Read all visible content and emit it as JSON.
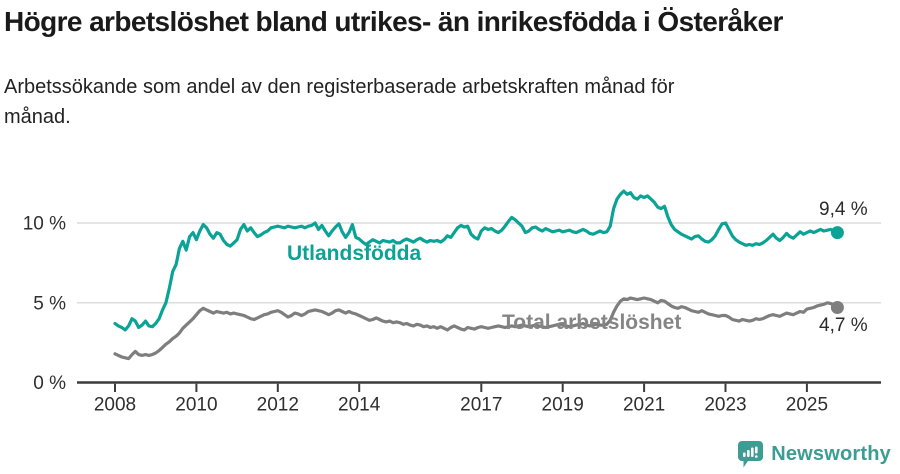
{
  "header": {
    "title": "Högre arbetslöshet bland utrikes- än inrikesfödda i Österåker",
    "subtitle": "Arbetssökande som andel av den registerbaserade arbetskraften månad för månad."
  },
  "chart_data": {
    "type": "line",
    "unit": "%",
    "frequency": "monthly",
    "x_start": {
      "year": 2008,
      "month": 1
    },
    "x_end": {
      "year": 2025,
      "month": 10
    },
    "ylim": [
      0,
      12.5
    ],
    "grid": "horizontal-only",
    "x_ticks": [
      2008,
      2010,
      2012,
      2014,
      2017,
      2019,
      2021,
      2023,
      2025
    ],
    "y_ticks": [
      {
        "value": 0,
        "label": "0 %"
      },
      {
        "value": 5,
        "label": "5 %"
      },
      {
        "value": 10,
        "label": "10 %"
      }
    ],
    "series": [
      {
        "id": "utlandsfodda",
        "name": "Utlandsfödda",
        "color": "#0aa396",
        "end_value": 9.4,
        "end_label": "9,4 %",
        "values": [
          3.7,
          3.55,
          3.45,
          3.3,
          3.55,
          4.0,
          3.85,
          3.45,
          3.6,
          3.85,
          3.55,
          3.5,
          3.7,
          4.0,
          4.55,
          5.0,
          5.9,
          6.95,
          7.4,
          8.4,
          8.85,
          8.3,
          9.15,
          9.4,
          8.95,
          9.5,
          9.9,
          9.7,
          9.3,
          9.05,
          9.4,
          9.3,
          8.9,
          8.65,
          8.55,
          8.75,
          8.95,
          9.6,
          9.9,
          9.5,
          9.7,
          9.4,
          9.15,
          9.25,
          9.4,
          9.5,
          9.7,
          9.75,
          9.8,
          9.75,
          9.7,
          9.8,
          9.75,
          9.7,
          9.75,
          9.8,
          9.7,
          9.8,
          9.85,
          10.0,
          9.6,
          9.85,
          9.5,
          9.2,
          9.5,
          9.75,
          9.95,
          9.45,
          9.1,
          9.4,
          9.9,
          9.1,
          9.0,
          8.8,
          8.65,
          8.8,
          8.95,
          8.85,
          8.75,
          8.9,
          8.85,
          8.8,
          8.9,
          8.75,
          8.75,
          8.9,
          9.0,
          8.9,
          8.8,
          8.95,
          9.05,
          8.9,
          8.8,
          8.9,
          8.85,
          8.9,
          8.8,
          8.95,
          9.2,
          9.1,
          9.4,
          9.7,
          9.85,
          9.75,
          9.8,
          9.3,
          9.1,
          9.0,
          9.5,
          9.7,
          9.6,
          9.65,
          9.5,
          9.4,
          9.55,
          9.8,
          10.1,
          10.35,
          10.2,
          10.0,
          9.8,
          9.4,
          9.5,
          9.7,
          9.75,
          9.6,
          9.5,
          9.65,
          9.55,
          9.45,
          9.5,
          9.55,
          9.45,
          9.5,
          9.55,
          9.45,
          9.4,
          9.5,
          9.6,
          9.5,
          9.35,
          9.3,
          9.4,
          9.5,
          9.4,
          9.45,
          9.8,
          10.9,
          11.5,
          11.8,
          12.0,
          11.8,
          11.9,
          11.6,
          11.5,
          11.7,
          11.6,
          11.7,
          11.5,
          11.3,
          11.0,
          10.9,
          11.05,
          10.4,
          9.9,
          9.6,
          9.45,
          9.3,
          9.2,
          9.1,
          9.0,
          9.15,
          9.2,
          9.0,
          8.85,
          8.8,
          8.95,
          9.2,
          9.6,
          9.95,
          10.0,
          9.6,
          9.2,
          8.95,
          8.8,
          8.7,
          8.6,
          8.65,
          8.6,
          8.7,
          8.65,
          8.75,
          8.9,
          9.1,
          9.3,
          9.05,
          8.9,
          9.1,
          9.35,
          9.15,
          9.05,
          9.25,
          9.45,
          9.3,
          9.4,
          9.5,
          9.4,
          9.5,
          9.6,
          9.5,
          9.55,
          9.6,
          9.5,
          9.4
        ]
      },
      {
        "id": "total",
        "name": "Total arbetslöshet",
        "color": "#7e7e7e",
        "end_value": 4.7,
        "end_label": "4,7 %",
        "values": [
          1.8,
          1.7,
          1.6,
          1.55,
          1.5,
          1.75,
          1.95,
          1.75,
          1.7,
          1.75,
          1.7,
          1.75,
          1.85,
          2.0,
          2.2,
          2.4,
          2.55,
          2.75,
          2.9,
          3.1,
          3.4,
          3.6,
          3.8,
          4.0,
          4.25,
          4.5,
          4.65,
          4.55,
          4.45,
          4.35,
          4.45,
          4.4,
          4.35,
          4.4,
          4.3,
          4.35,
          4.3,
          4.25,
          4.2,
          4.1,
          4.0,
          3.95,
          4.05,
          4.15,
          4.25,
          4.3,
          4.4,
          4.45,
          4.5,
          4.4,
          4.25,
          4.1,
          4.2,
          4.35,
          4.3,
          4.2,
          4.3,
          4.45,
          4.5,
          4.55,
          4.5,
          4.45,
          4.35,
          4.25,
          4.35,
          4.5,
          4.55,
          4.45,
          4.35,
          4.45,
          4.35,
          4.3,
          4.2,
          4.1,
          4.0,
          3.9,
          3.95,
          4.05,
          3.95,
          3.85,
          3.8,
          3.85,
          3.75,
          3.8,
          3.75,
          3.65,
          3.7,
          3.6,
          3.55,
          3.65,
          3.6,
          3.5,
          3.55,
          3.45,
          3.5,
          3.4,
          3.5,
          3.4,
          3.3,
          3.45,
          3.55,
          3.45,
          3.35,
          3.3,
          3.45,
          3.4,
          3.35,
          3.45,
          3.5,
          3.45,
          3.4,
          3.45,
          3.5,
          3.55,
          3.5,
          3.45,
          3.5,
          3.55,
          3.5,
          3.55,
          3.6,
          3.55,
          3.5,
          3.55,
          3.6,
          3.55,
          3.5,
          3.45,
          3.5,
          3.55,
          3.6,
          3.65,
          3.6,
          3.55,
          3.5,
          3.55,
          3.6,
          3.65,
          3.7,
          3.6,
          3.55,
          3.6,
          3.65,
          3.6,
          3.6,
          3.65,
          3.9,
          4.4,
          4.8,
          5.1,
          5.25,
          5.2,
          5.3,
          5.25,
          5.2,
          5.25,
          5.3,
          5.25,
          5.2,
          5.1,
          5.0,
          5.15,
          5.1,
          4.95,
          4.8,
          4.7,
          4.65,
          4.75,
          4.7,
          4.6,
          4.5,
          4.45,
          4.4,
          4.5,
          4.4,
          4.3,
          4.25,
          4.2,
          4.15,
          4.2,
          4.2,
          4.1,
          3.95,
          3.9,
          3.85,
          3.95,
          3.9,
          3.85,
          3.9,
          4.0,
          3.95,
          4.0,
          4.1,
          4.2,
          4.25,
          4.2,
          4.15,
          4.25,
          4.35,
          4.3,
          4.25,
          4.35,
          4.45,
          4.4,
          4.6,
          4.65,
          4.7,
          4.8,
          4.85,
          4.9,
          5.0,
          4.95,
          4.85,
          4.7
        ]
      }
    ]
  },
  "footer": {
    "brand": "Newsworthy"
  }
}
